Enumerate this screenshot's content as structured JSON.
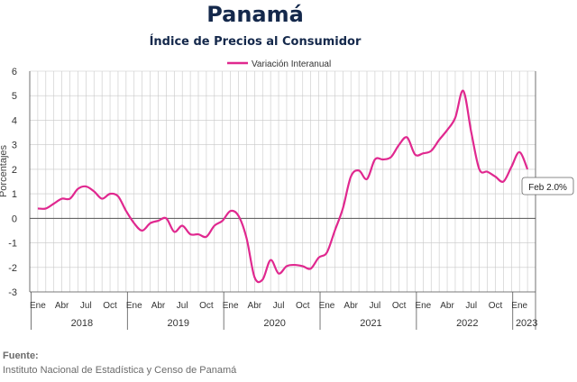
{
  "header": {
    "title": "Panamá",
    "subtitle": "Índice de Precios al Consumidor"
  },
  "footer": {
    "source_label": "Fuente:",
    "source_text": "Instituto Nacional de Estadística y Censo de Panamá"
  },
  "colors": {
    "series": "#e0288f",
    "title": "#14284b",
    "grid": "#c8c8c8",
    "axis": "#555555"
  },
  "chart_data": {
    "type": "line",
    "title": "Índice de Precios al Consumidor",
    "xlabel": "",
    "ylabel": "Porcentajes",
    "ylim": [
      -3,
      6
    ],
    "yticks": [
      "-3",
      "-2",
      "-1",
      "0",
      "1",
      "2",
      "3",
      "4",
      "5",
      "6"
    ],
    "month_labels": [
      "Ene",
      "Abr",
      "Jul",
      "Oct"
    ],
    "years": [
      "2018",
      "2019",
      "2020",
      "2021",
      "2022",
      "2023"
    ],
    "last_month_label": "Ene",
    "grid": true,
    "legend_position": "top",
    "annotation": "Feb 2.0%",
    "series": [
      {
        "name": "Variación Interanual",
        "x": [
          "2018-01",
          "2018-02",
          "2018-03",
          "2018-04",
          "2018-05",
          "2018-06",
          "2018-07",
          "2018-08",
          "2018-09",
          "2018-10",
          "2018-11",
          "2018-12",
          "2019-01",
          "2019-02",
          "2019-03",
          "2019-04",
          "2019-05",
          "2019-06",
          "2019-07",
          "2019-08",
          "2019-09",
          "2019-10",
          "2019-11",
          "2019-12",
          "2020-01",
          "2020-02",
          "2020-03",
          "2020-04",
          "2020-05",
          "2020-06",
          "2020-07",
          "2020-08",
          "2020-09",
          "2020-10",
          "2020-11",
          "2020-12",
          "2021-01",
          "2021-02",
          "2021-03",
          "2021-04",
          "2021-05",
          "2021-06",
          "2021-07",
          "2021-08",
          "2021-09",
          "2021-10",
          "2021-11",
          "2021-12",
          "2022-01",
          "2022-02",
          "2022-03",
          "2022-04",
          "2022-05",
          "2022-06",
          "2022-07",
          "2022-08",
          "2022-09",
          "2022-10",
          "2022-11",
          "2022-12",
          "2023-01",
          "2023-02"
        ],
        "values": [
          0.4,
          0.4,
          0.6,
          0.8,
          0.8,
          1.2,
          1.3,
          1.1,
          0.8,
          1.0,
          0.9,
          0.3,
          -0.2,
          -0.5,
          -0.2,
          -0.1,
          0.0,
          -0.55,
          -0.3,
          -0.65,
          -0.65,
          -0.75,
          -0.3,
          -0.1,
          0.3,
          0.1,
          -0.8,
          -2.4,
          -2.5,
          -1.7,
          -2.25,
          -1.95,
          -1.9,
          -1.95,
          -2.05,
          -1.6,
          -1.4,
          -0.5,
          0.4,
          1.7,
          1.95,
          1.6,
          2.4,
          2.4,
          2.5,
          3.0,
          3.3,
          2.6,
          2.65,
          2.75,
          3.2,
          3.6,
          4.1,
          5.2,
          3.5,
          2.0,
          1.9,
          1.7,
          1.5,
          2.1,
          2.7,
          2.0
        ]
      }
    ]
  }
}
